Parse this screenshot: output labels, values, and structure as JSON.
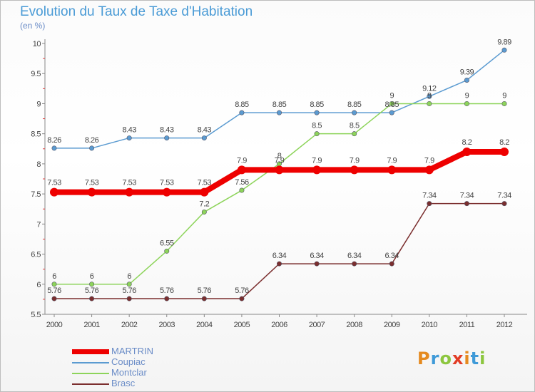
{
  "header": {
    "title": "Evolution du Taux de Taxe d'Habitation",
    "subtitle": "(en %)"
  },
  "colors": {
    "title": "#4a9bd6",
    "legend_text": "#6a8cc7",
    "axis": "#888888"
  },
  "chart_data": {
    "type": "line",
    "title": "Evolution du Taux de Taxe d'Habitation",
    "ylabel": "(en %)",
    "xlabel": "",
    "x": [
      "2000",
      "2001",
      "2002",
      "2003",
      "2004",
      "2005",
      "2006",
      "2007",
      "2008",
      "2009",
      "2010",
      "2011",
      "2012"
    ],
    "ylim": [
      5.5,
      10
    ],
    "yticks": [
      "5.5",
      "6",
      "6.5",
      "7",
      "7.5",
      "8",
      "8.5",
      "9",
      "9.5",
      "10"
    ],
    "grid": false,
    "legend_position": "bottom-left",
    "series": [
      {
        "name": "MARTRIN",
        "color": "#ee0000",
        "values": [
          7.53,
          7.53,
          7.53,
          7.53,
          7.53,
          7.9,
          7.9,
          7.9,
          7.9,
          7.9,
          7.9,
          8.2,
          8.2
        ],
        "labels": [
          "7.53",
          "7.53",
          "7.53",
          "7.53",
          "7.53",
          "7.9",
          "7.9",
          "7.9",
          "7.9",
          "7.9",
          "7.9",
          "8.2",
          "8.2"
        ]
      },
      {
        "name": "Coupiac",
        "color": "#5b9bd1",
        "values": [
          8.26,
          8.26,
          8.43,
          8.43,
          8.43,
          8.85,
          8.85,
          8.85,
          8.85,
          8.85,
          9.12,
          9.39,
          9.89
        ],
        "labels": [
          "8.26",
          "8.26",
          "8.43",
          "8.43",
          "8.43",
          "8.85",
          "8.85",
          "8.85",
          "8.85",
          "8.85",
          "9.12",
          "9.39",
          "9.89"
        ]
      },
      {
        "name": "Montclar",
        "color": "#8dd45a",
        "values": [
          6,
          6,
          6,
          6.55,
          7.2,
          7.56,
          8,
          8.5,
          8.5,
          9,
          9,
          9,
          9
        ],
        "labels": [
          "6",
          "6",
          "6",
          "6.55",
          "7.2",
          "7.56",
          "8",
          "8.5",
          "8.5",
          "9",
          "9",
          "9",
          "9"
        ]
      },
      {
        "name": "Brasc",
        "color": "#7b2e2e",
        "values": [
          5.76,
          5.76,
          5.76,
          5.76,
          5.76,
          5.76,
          6.34,
          6.34,
          6.34,
          6.34,
          7.34,
          7.34,
          7.34
        ],
        "labels": [
          "5.76",
          "5.76",
          "5.76",
          "5.76",
          "5.76",
          "5.76",
          "6.34",
          "6.34",
          "6.34",
          "6.34",
          "7.34",
          "7.34",
          "7.34"
        ]
      }
    ]
  },
  "legend": {
    "items": [
      {
        "label": "MARTRIN",
        "color": "#ee0000"
      },
      {
        "label": "Coupiac",
        "color": "#5b9bd1"
      },
      {
        "label": "Montclar",
        "color": "#8dd45a"
      },
      {
        "label": "Brasc",
        "color": "#7b2e2e"
      }
    ]
  },
  "brand": {
    "logo_letters": [
      "P",
      "r",
      "o",
      "x",
      "i",
      "t",
      "i"
    ]
  }
}
